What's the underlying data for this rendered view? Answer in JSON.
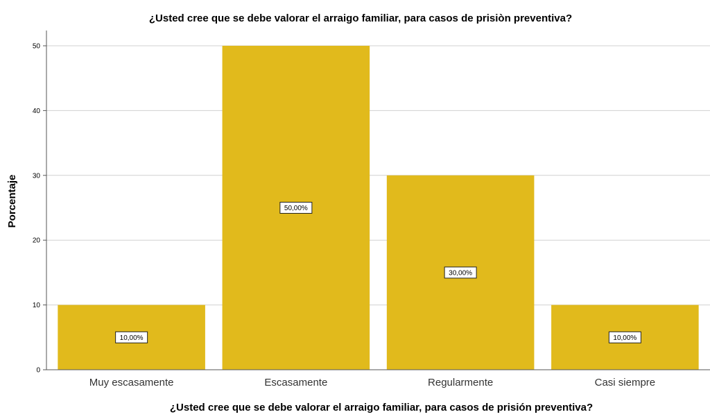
{
  "chart_data": {
    "type": "bar",
    "title": "¿Usted cree que se debe valorar el arraigo familiar, para casos de prisiòn preventiva?",
    "xlabel": "¿Usted cree que se debe valorar el arraigo familiar, para casos de prisión preventiva?",
    "ylabel": "Porcentaje",
    "categories": [
      "Muy escasamente",
      "Escasamente",
      "Regularmente",
      "Casi siempre"
    ],
    "values": [
      10,
      50,
      30,
      10
    ],
    "data_labels": [
      "10,00%",
      "50,00%",
      "30,00%",
      "10,00%"
    ],
    "ylim": [
      0,
      50
    ],
    "yticks": [
      "0",
      "10",
      "20",
      "30",
      "40",
      "50"
    ],
    "grid": true,
    "bar_color": "#e1ba1c",
    "legend": "none"
  }
}
